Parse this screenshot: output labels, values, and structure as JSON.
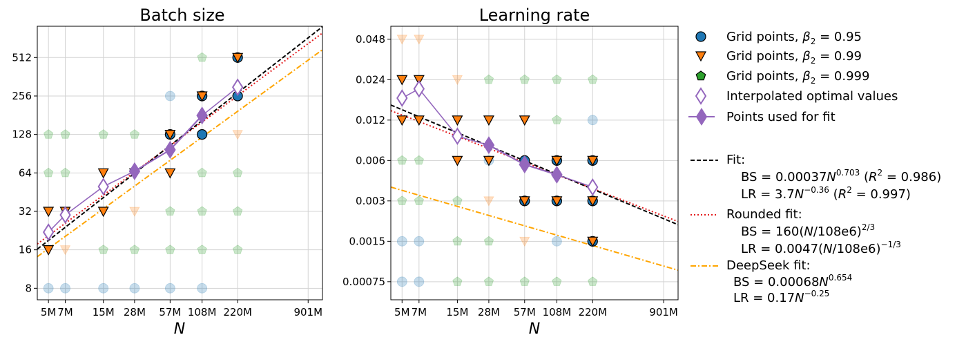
{
  "colors": {
    "blue": "#1f77b4",
    "orange": "#ff7f0e",
    "green": "#2ca02c",
    "purple": "#9467bd",
    "fit": "#000000",
    "rounded": "#e31a1c",
    "deepseek": "#ffa500",
    "grid": "#d3d3d3"
  },
  "chart_data": [
    {
      "type": "scatter",
      "title": "Batch size",
      "xlabel": "N",
      "ylabel": "",
      "xscale": "log",
      "yscale": "log2",
      "xlim": [
        4000000,
        1200000000
      ],
      "ylim": [
        6.5,
        900
      ],
      "xticks": [
        {
          "v": 5000000,
          "label": "5M"
        },
        {
          "v": 7000000,
          "label": "7M"
        },
        {
          "v": 15000000,
          "label": "15M"
        },
        {
          "v": 28000000,
          "label": "28M"
        },
        {
          "v": 57000000,
          "label": "57M"
        },
        {
          "v": 108000000,
          "label": "108M"
        },
        {
          "v": 220000000,
          "label": "220M"
        },
        {
          "v": 901000000,
          "label": "901M"
        }
      ],
      "yticks": [
        {
          "v": 8,
          "label": "8"
        },
        {
          "v": 16,
          "label": "16"
        },
        {
          "v": 32,
          "label": "32"
        },
        {
          "v": 64,
          "label": "64"
        },
        {
          "v": 128,
          "label": "128"
        },
        {
          "v": 256,
          "label": "256"
        },
        {
          "v": 512,
          "label": "512"
        }
      ],
      "faded_points": [
        {
          "x": 5000000,
          "y": 8,
          "s": "blue"
        },
        {
          "x": 7000000,
          "y": 8,
          "s": "blue"
        },
        {
          "x": 15000000,
          "y": 8,
          "s": "blue"
        },
        {
          "x": 28000000,
          "y": 8,
          "s": "blue"
        },
        {
          "x": 57000000,
          "y": 8,
          "s": "blue"
        },
        {
          "x": 108000000,
          "y": 8,
          "s": "blue"
        },
        {
          "x": 7000000,
          "y": 16,
          "s": "orange"
        },
        {
          "x": 15000000,
          "y": 16,
          "s": "green"
        },
        {
          "x": 28000000,
          "y": 16,
          "s": "green"
        },
        {
          "x": 57000000,
          "y": 16,
          "s": "green"
        },
        {
          "x": 108000000,
          "y": 16,
          "s": "green"
        },
        {
          "x": 220000000,
          "y": 16,
          "s": "green"
        },
        {
          "x": 57000000,
          "y": 32,
          "s": "green"
        },
        {
          "x": 108000000,
          "y": 32,
          "s": "green"
        },
        {
          "x": 220000000,
          "y": 32,
          "s": "green"
        },
        {
          "x": 28000000,
          "y": 32,
          "s": "orange"
        },
        {
          "x": 5000000,
          "y": 64,
          "s": "green"
        },
        {
          "x": 7000000,
          "y": 64,
          "s": "green"
        },
        {
          "x": 108000000,
          "y": 64,
          "s": "green"
        },
        {
          "x": 220000000,
          "y": 64,
          "s": "green"
        },
        {
          "x": 5000000,
          "y": 128,
          "s": "green"
        },
        {
          "x": 7000000,
          "y": 128,
          "s": "green"
        },
        {
          "x": 15000000,
          "y": 128,
          "s": "green"
        },
        {
          "x": 28000000,
          "y": 128,
          "s": "green"
        },
        {
          "x": 57000000,
          "y": 256,
          "s": "blue"
        },
        {
          "x": 108000000,
          "y": 512,
          "s": "green"
        },
        {
          "x": 220000000,
          "y": 128,
          "s": "orange"
        }
      ],
      "strong_points": [
        {
          "x": 5000000,
          "y": 16,
          "s": "orange"
        },
        {
          "x": 5000000,
          "y": 32,
          "s": "orange"
        },
        {
          "x": 7000000,
          "y": 32,
          "s": "orange"
        },
        {
          "x": 15000000,
          "y": 32,
          "s": "orange"
        },
        {
          "x": 15000000,
          "y": 64,
          "s": "orange"
        },
        {
          "x": 28000000,
          "y": 64,
          "s": "orange"
        },
        {
          "x": 57000000,
          "y": 64,
          "s": "orange"
        },
        {
          "x": 57000000,
          "y": 128,
          "s": "blue"
        },
        {
          "x": 57000000,
          "y": 128,
          "s": "orange"
        },
        {
          "x": 108000000,
          "y": 128,
          "s": "blue"
        },
        {
          "x": 108000000,
          "y": 256,
          "s": "blue"
        },
        {
          "x": 108000000,
          "y": 256,
          "s": "orange"
        },
        {
          "x": 220000000,
          "y": 256,
          "s": "blue"
        },
        {
          "x": 220000000,
          "y": 512,
          "s": "blue"
        },
        {
          "x": 220000000,
          "y": 512,
          "s": "orange"
        }
      ],
      "interpolated": [
        {
          "x": 5000000,
          "y": 22
        },
        {
          "x": 7000000,
          "y": 30
        },
        {
          "x": 15000000,
          "y": 50
        },
        {
          "x": 28000000,
          "y": 66
        },
        {
          "x": 57000000,
          "y": 97
        },
        {
          "x": 108000000,
          "y": 180
        },
        {
          "x": 220000000,
          "y": 300
        }
      ],
      "fit_points": [
        {
          "x": 28000000,
          "y": 66
        },
        {
          "x": 57000000,
          "y": 97
        },
        {
          "x": 108000000,
          "y": 180
        }
      ],
      "lines": {
        "fit": {
          "a": 0.00037,
          "b": 0.703
        },
        "rounded": {
          "a": 160,
          "n0": 108000000,
          "b": 0.6667
        },
        "deepseek": {
          "a": 0.00068,
          "b": 0.654
        }
      }
    },
    {
      "type": "scatter",
      "title": "Learning rate",
      "xlabel": "N",
      "ylabel": "",
      "xscale": "log",
      "yscale": "log2",
      "xlim": [
        4000000,
        1200000000
      ],
      "ylim": [
        0.00055,
        0.06
      ],
      "xticks": [
        {
          "v": 5000000,
          "label": "5M"
        },
        {
          "v": 7000000,
          "label": "7M"
        },
        {
          "v": 15000000,
          "label": "15M"
        },
        {
          "v": 28000000,
          "label": "28M"
        },
        {
          "v": 57000000,
          "label": "57M"
        },
        {
          "v": 108000000,
          "label": "108M"
        },
        {
          "v": 220000000,
          "label": "220M"
        },
        {
          "v": 901000000,
          "label": "901M"
        }
      ],
      "yticks": [
        {
          "v": 0.00075,
          "label": "0.00075"
        },
        {
          "v": 0.0015,
          "label": "0.0015"
        },
        {
          "v": 0.003,
          "label": "0.003"
        },
        {
          "v": 0.006,
          "label": "0.006"
        },
        {
          "v": 0.012,
          "label": "0.012"
        },
        {
          "v": 0.024,
          "label": "0.024"
        },
        {
          "v": 0.048,
          "label": "0.048"
        }
      ],
      "faded_points": [
        {
          "x": 5000000,
          "y": 0.00075,
          "s": "blue"
        },
        {
          "x": 7000000,
          "y": 0.00075,
          "s": "blue"
        },
        {
          "x": 15000000,
          "y": 0.00075,
          "s": "green"
        },
        {
          "x": 28000000,
          "y": 0.00075,
          "s": "green"
        },
        {
          "x": 57000000,
          "y": 0.00075,
          "s": "green"
        },
        {
          "x": 108000000,
          "y": 0.00075,
          "s": "green"
        },
        {
          "x": 220000000,
          "y": 0.00075,
          "s": "green"
        },
        {
          "x": 5000000,
          "y": 0.0015,
          "s": "blue"
        },
        {
          "x": 7000000,
          "y": 0.0015,
          "s": "blue"
        },
        {
          "x": 15000000,
          "y": 0.0015,
          "s": "green"
        },
        {
          "x": 28000000,
          "y": 0.0015,
          "s": "green"
        },
        {
          "x": 57000000,
          "y": 0.0015,
          "s": "orange"
        },
        {
          "x": 108000000,
          "y": 0.0015,
          "s": "blue"
        },
        {
          "x": 5000000,
          "y": 0.003,
          "s": "green"
        },
        {
          "x": 7000000,
          "y": 0.003,
          "s": "green"
        },
        {
          "x": 15000000,
          "y": 0.003,
          "s": "green"
        },
        {
          "x": 28000000,
          "y": 0.003,
          "s": "orange"
        },
        {
          "x": 5000000,
          "y": 0.006,
          "s": "green"
        },
        {
          "x": 7000000,
          "y": 0.006,
          "s": "green"
        },
        {
          "x": 28000000,
          "y": 0.006,
          "s": "blue"
        },
        {
          "x": 108000000,
          "y": 0.012,
          "s": "green"
        },
        {
          "x": 220000000,
          "y": 0.012,
          "s": "blue"
        },
        {
          "x": 15000000,
          "y": 0.024,
          "s": "orange"
        },
        {
          "x": 28000000,
          "y": 0.024,
          "s": "green"
        },
        {
          "x": 57000000,
          "y": 0.024,
          "s": "green"
        },
        {
          "x": 108000000,
          "y": 0.024,
          "s": "green"
        },
        {
          "x": 220000000,
          "y": 0.024,
          "s": "green"
        },
        {
          "x": 5000000,
          "y": 0.048,
          "s": "orange"
        },
        {
          "x": 7000000,
          "y": 0.048,
          "s": "orange"
        }
      ],
      "strong_points": [
        {
          "x": 5000000,
          "y": 0.024,
          "s": "orange"
        },
        {
          "x": 7000000,
          "y": 0.024,
          "s": "orange"
        },
        {
          "x": 5000000,
          "y": 0.012,
          "s": "orange"
        },
        {
          "x": 7000000,
          "y": 0.012,
          "s": "orange"
        },
        {
          "x": 15000000,
          "y": 0.012,
          "s": "orange"
        },
        {
          "x": 28000000,
          "y": 0.012,
          "s": "orange"
        },
        {
          "x": 57000000,
          "y": 0.012,
          "s": "orange"
        },
        {
          "x": 15000000,
          "y": 0.006,
          "s": "orange"
        },
        {
          "x": 28000000,
          "y": 0.006,
          "s": "orange"
        },
        {
          "x": 57000000,
          "y": 0.006,
          "s": "blue"
        },
        {
          "x": 108000000,
          "y": 0.006,
          "s": "blue"
        },
        {
          "x": 108000000,
          "y": 0.006,
          "s": "orange"
        },
        {
          "x": 220000000,
          "y": 0.006,
          "s": "blue"
        },
        {
          "x": 220000000,
          "y": 0.006,
          "s": "orange"
        },
        {
          "x": 57000000,
          "y": 0.003,
          "s": "blue"
        },
        {
          "x": 57000000,
          "y": 0.003,
          "s": "orange"
        },
        {
          "x": 108000000,
          "y": 0.003,
          "s": "blue"
        },
        {
          "x": 108000000,
          "y": 0.003,
          "s": "orange"
        },
        {
          "x": 220000000,
          "y": 0.003,
          "s": "blue"
        },
        {
          "x": 220000000,
          "y": 0.003,
          "s": "orange"
        },
        {
          "x": 220000000,
          "y": 0.0015,
          "s": "blue"
        },
        {
          "x": 220000000,
          "y": 0.0015,
          "s": "orange"
        }
      ],
      "interpolated": [
        {
          "x": 5000000,
          "y": 0.0175
        },
        {
          "x": 7000000,
          "y": 0.0205
        },
        {
          "x": 15000000,
          "y": 0.0091
        },
        {
          "x": 28000000,
          "y": 0.0078
        },
        {
          "x": 57000000,
          "y": 0.0056
        },
        {
          "x": 108000000,
          "y": 0.0047
        },
        {
          "x": 220000000,
          "y": 0.0038
        }
      ],
      "fit_points": [
        {
          "x": 28000000,
          "y": 0.0078
        },
        {
          "x": 57000000,
          "y": 0.0056
        },
        {
          "x": 108000000,
          "y": 0.0047
        }
      ],
      "lines": {
        "fit": {
          "a": 3.7,
          "b": -0.36
        },
        "rounded": {
          "a": 0.0047,
          "n0": 108000000,
          "b": -0.3333
        },
        "deepseek": {
          "a": 0.17,
          "b": -0.25
        }
      }
    }
  ],
  "legend": {
    "items": [
      {
        "kind": "circle",
        "s": "blue",
        "text": "Grid points, ",
        "beta": "β",
        "sub": "2",
        "eq": " = 0.95"
      },
      {
        "kind": "tri",
        "s": "orange",
        "text": "Grid points, ",
        "beta": "β",
        "sub": "2",
        "eq": " = 0.99"
      },
      {
        "kind": "pent",
        "s": "green",
        "text": "Grid points, ",
        "beta": "β",
        "sub": "2",
        "eq": " = 0.999"
      },
      {
        "kind": "hollow",
        "s": "purple",
        "text": "Interpolated optimal values"
      },
      {
        "kind": "solidline",
        "s": "purple",
        "text": "Points used for fit"
      }
    ],
    "fit": {
      "title": "Fit:",
      "bs": {
        "pre": "BS = 0.00037",
        "var": "N",
        "exp": "0.703",
        "r_open": " (",
        "r_var": "R",
        "r_sup": "2",
        "r_val": " = 0.986)"
      },
      "lr": {
        "pre": "LR = 3.7",
        "var": "N",
        "exp": "−0.36",
        "r_open": " (",
        "r_var": "R",
        "r_sup": "2",
        "r_val": " = 0.997)"
      }
    },
    "rounded": {
      "title": "Rounded fit:",
      "bs": {
        "pre": "BS =  160(",
        "var": "N",
        "post": "/108e6)",
        "exp": "2/3"
      },
      "lr": {
        "pre": "LR =  0.0047(",
        "var": "N",
        "post": "/108e6)",
        "exp": "−1/3"
      }
    },
    "deepseek": {
      "title": "DeepSeek fit:",
      "bs": {
        "pre": "BS = 0.00068",
        "var": "N",
        "exp": "0.654"
      },
      "lr": {
        "pre": "LR  = 0.17",
        "var": "N",
        "exp": "−0.25"
      }
    }
  }
}
